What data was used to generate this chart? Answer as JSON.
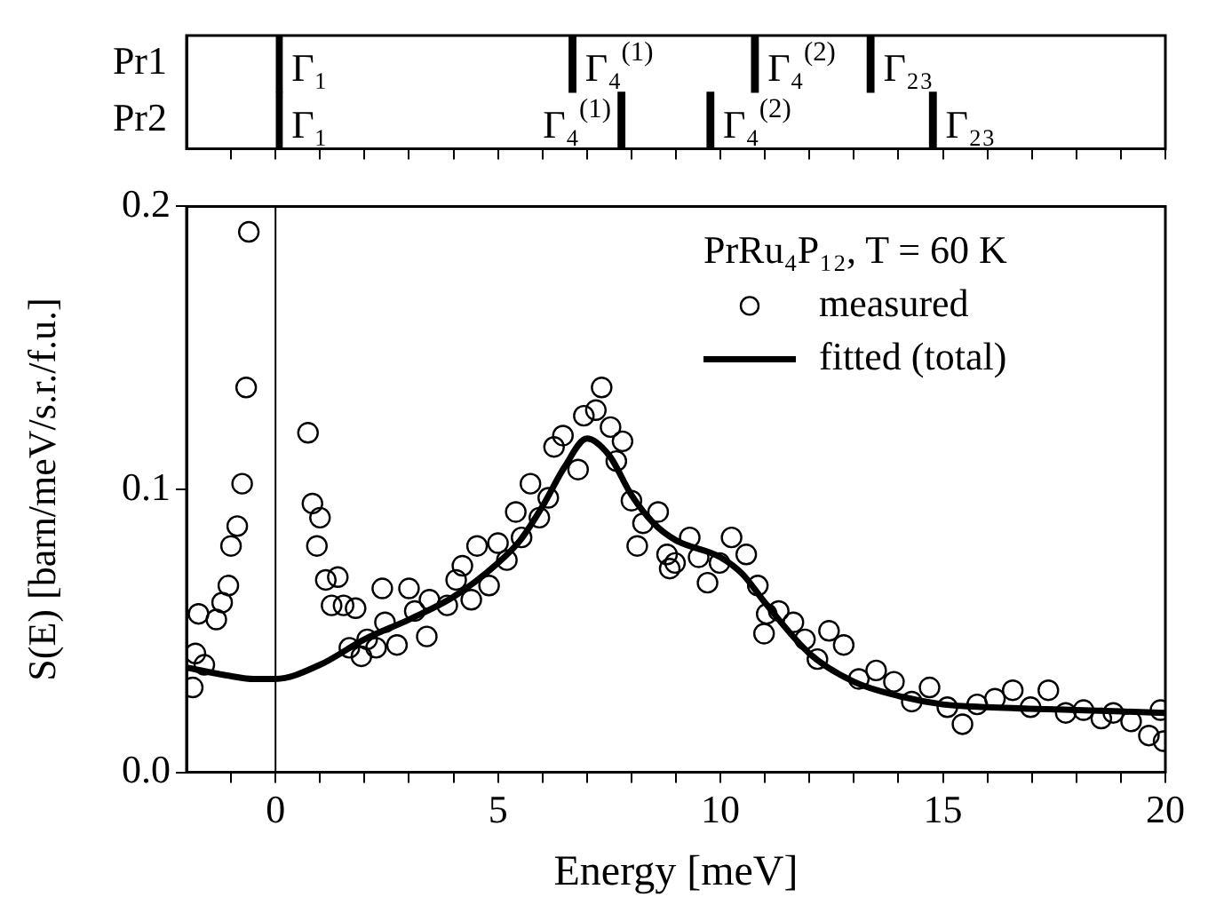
{
  "chart_data": [
    {
      "type": "bar",
      "orientation": "horizontal",
      "categories": [
        "Pr1",
        "Pr2"
      ],
      "series": [
        {
          "color": "#000000",
          "values": [
            0.15,
            0.15
          ],
          "base": [
            0,
            0
          ]
        },
        {
          "color": "#000000",
          "values": [
            0.15,
            0.15
          ],
          "base": [
            6.6,
            7.7
          ]
        },
        {
          "color": "#000000",
          "values": [
            0.15,
            0.15
          ],
          "base": [
            10.7,
            9.7
          ]
        },
        {
          "color": "#000000",
          "values": [
            0.15,
            0.15
          ],
          "base": [
            13.3,
            14.7
          ]
        }
      ],
      "xlim": [
        -2,
        20
      ],
      "xticks": [
        {
          "value": -1,
          "label": null
        },
        {
          "value": 0,
          "label": null
        },
        {
          "value": 1,
          "label": null
        },
        {
          "value": 2,
          "label": null
        },
        {
          "value": 3,
          "label": null
        },
        {
          "value": 4,
          "label": null
        },
        {
          "value": 5,
          "label": null
        },
        {
          "value": 6,
          "label": null
        },
        {
          "value": 7,
          "label": null
        },
        {
          "value": 8,
          "label": null
        },
        {
          "value": 9,
          "label": null
        },
        {
          "value": 10,
          "label": null
        },
        {
          "value": 11,
          "label": null
        },
        {
          "value": 12,
          "label": null
        },
        {
          "value": 13,
          "label": null
        },
        {
          "value": 14,
          "label": null
        },
        {
          "value": 15,
          "label": null
        },
        {
          "value": 16,
          "label": null
        },
        {
          "value": 17,
          "label": null
        },
        {
          "value": 18,
          "label": null
        },
        {
          "value": 19,
          "label": null
        },
        {
          "value": 20,
          "label": null
        }
      ],
      "tick_labels": "y",
      "annotations": [
        {
          "text": "Γ₁",
          "x": 0,
          "y": "Pr1"
        },
        {
          "text": "Γ₄$^{(1)}$",
          "x": 6.6,
          "y": "Pr1"
        },
        {
          "text": "Γ₄$^{(2)}$",
          "x": 10.7,
          "y": "Pr1"
        },
        {
          "text": "Γ₂₃",
          "x": 13.3,
          "y": "Pr1"
        },
        {
          "text": "Γ₁",
          "x": 0,
          "y": "Pr2"
        },
        {
          "text": "Γ₄$^{(1)}$",
          "x": 7.7,
          "y": "Pr2"
        },
        {
          "text": "Γ₄$^{(2)}$",
          "x": 9.7,
          "y": "Pr2"
        },
        {
          "text": "Γ₂₃",
          "x": 14.7,
          "y": "Pr2"
        }
      ]
    },
    {
      "type": "scatter",
      "xlabel": "Energy [meV]",
      "ylabel": "S(E) [barn/meV/s.r./f.u.]",
      "legend": "top right",
      "legend_title": "PrRu₄P₁₂, T = 60 K",
      "xlim": [
        -2,
        20
      ],
      "xticks": [
        {
          "value": -1,
          "label": null
        },
        0,
        {
          "value": 1,
          "label": null
        },
        {
          "value": 2,
          "label": null
        },
        {
          "value": 3,
          "label": null
        },
        {
          "value": 4,
          "label": null
        },
        5,
        {
          "value": 6,
          "label": null
        },
        {
          "value": 7,
          "label": null
        },
        {
          "value": 8,
          "label": null
        },
        {
          "value": 9,
          "label": null
        },
        10,
        {
          "value": 11,
          "label": null
        },
        {
          "value": 12,
          "label": null
        },
        {
          "value": 13,
          "label": null
        },
        {
          "value": 14,
          "label": null
        },
        15,
        {
          "value": 16,
          "label": null
        },
        {
          "value": 17,
          "label": null
        },
        {
          "value": 18,
          "label": null
        },
        {
          "value": 19,
          "label": null
        },
        20
      ],
      "ylim": [
        0,
        0.2
      ],
      "yticks": [
        {
          "value": 0,
          "label": "0.0"
        },
        0.1,
        0.2
      ],
      "ref_lines": [
        {
          "axis": "x",
          "value": 0,
          "color": "#000000"
        }
      ],
      "series": [
        {
          "name": "measured",
          "marker": "circle",
          "color": "#000000",
          "x": [
            -1.86,
            -1.8,
            -1.6,
            -1.73,
            -1.33,
            -1.2,
            -1.06,
            -1.0,
            -0.86,
            -0.75,
            -0.66,
            -0.6,
            0.73,
            0.83,
            1.0,
            0.93,
            1.13,
            1.26,
            1.4,
            1.53,
            1.8,
            1.66,
            1.93,
            2.06,
            2.26,
            2.4,
            2.46,
            2.73,
            3.0,
            3.13,
            3.4,
            3.46,
            3.86,
            4.06,
            4.2,
            4.4,
            4.53,
            4.8,
            5.0,
            5.2,
            5.4,
            5.53,
            5.73,
            5.93,
            6.13,
            6.26,
            6.46,
            6.8,
            6.93,
            7.2,
            7.33,
            7.53,
            7.8,
            7.66,
            8.0,
            8.13,
            8.26,
            8.6,
            8.8,
            8.86,
            8.98,
            9.31,
            9.51,
            9.71,
            9.98,
            10.25,
            10.58,
            10.84,
            11.04,
            10.98,
            11.31,
            11.64,
            11.9,
            12.18,
            12.44,
            12.77,
            13.11,
            13.5,
            13.9,
            14.3,
            14.7,
            15.1,
            15.44,
            15.77,
            16.17,
            16.57,
            16.97,
            17.37,
            17.76,
            18.16,
            18.56,
            18.83,
            19.23,
            19.63,
            19.96,
            19.89
          ],
          "values": [
            0.03,
            0.042,
            0.038,
            0.056,
            0.054,
            0.06,
            0.066,
            0.08,
            0.087,
            0.102,
            0.136,
            0.191,
            0.12,
            0.095,
            0.09,
            0.08,
            0.068,
            0.059,
            0.069,
            0.059,
            0.058,
            0.044,
            0.041,
            0.047,
            0.044,
            0.065,
            0.053,
            0.045,
            0.065,
            0.057,
            0.048,
            0.061,
            0.059,
            0.068,
            0.073,
            0.061,
            0.08,
            0.066,
            0.081,
            0.075,
            0.092,
            0.083,
            0.102,
            0.09,
            0.097,
            0.115,
            0.119,
            0.107,
            0.126,
            0.128,
            0.136,
            0.122,
            0.117,
            0.11,
            0.096,
            0.08,
            0.088,
            0.092,
            0.077,
            0.072,
            0.074,
            0.083,
            0.076,
            0.067,
            0.074,
            0.083,
            0.077,
            0.066,
            0.056,
            0.049,
            0.057,
            0.053,
            0.047,
            0.04,
            0.05,
            0.045,
            0.033,
            0.036,
            0.032,
            0.025,
            0.03,
            0.023,
            0.017,
            0.024,
            0.026,
            0.029,
            0.023,
            0.029,
            0.021,
            0.022,
            0.019,
            0.021,
            0.018,
            0.013,
            0.011,
            0.022
          ]
        },
        {
          "name": "fitted (total)",
          "type": "line",
          "color": "#000000",
          "x": [
            -2,
            -1,
            -0.5,
            0,
            1,
            2,
            3,
            4,
            5,
            5.5,
            6,
            6.5,
            7,
            7.5,
            8,
            8.5,
            9,
            10,
            10.5,
            11,
            12,
            13,
            14,
            15,
            16,
            18,
            20
          ],
          "values": [
            0.037,
            0.034,
            0.033,
            0.033,
            0.038,
            0.047,
            0.054,
            0.062,
            0.074,
            0.082,
            0.094,
            0.108,
            0.118,
            0.112,
            0.098,
            0.088,
            0.082,
            0.076,
            0.07,
            0.06,
            0.042,
            0.032,
            0.027,
            0.024,
            0.023,
            0.022,
            0.021
          ]
        }
      ]
    }
  ]
}
